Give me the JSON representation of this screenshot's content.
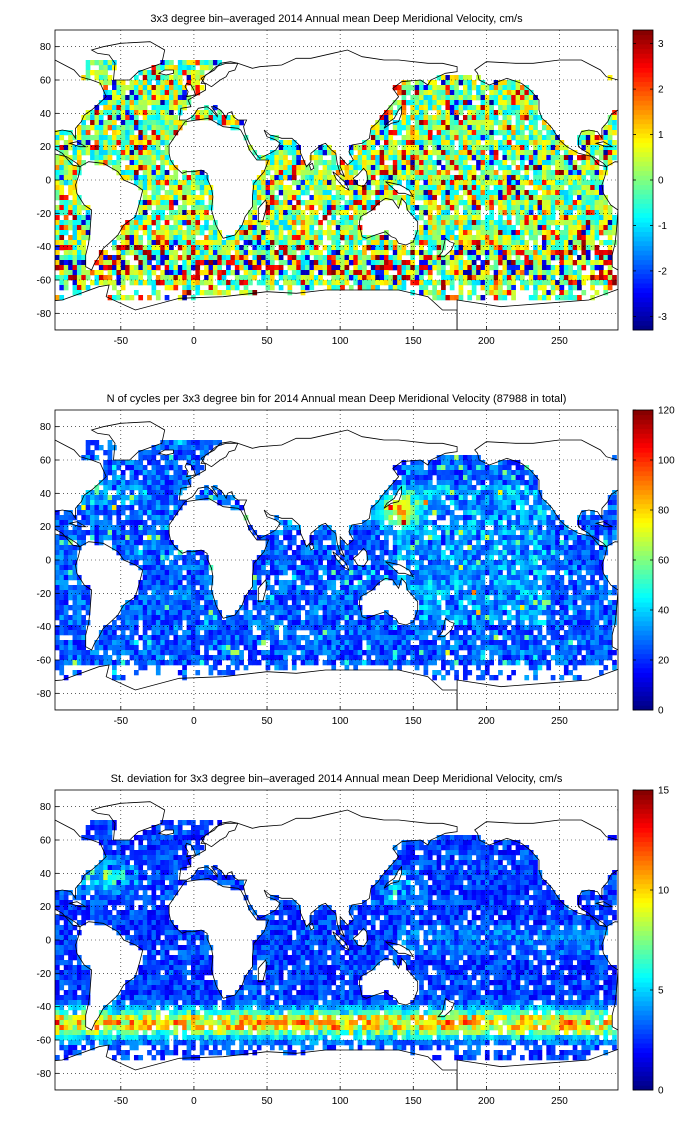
{
  "panels": [
    {
      "title": "3x3 degree bin–averaged 2014 Annual mean Deep Meridional Velocity, cm/s",
      "colorbar": {
        "min": -3.3,
        "max": 3.3,
        "ticks": [
          -3,
          -2,
          -1,
          0,
          1,
          2,
          3
        ]
      },
      "field": "velocity"
    },
    {
      "title": "N of cycles per 3x3 degree bin for 2014 Annual mean Deep Meridional Velocity (87988 in total)",
      "colorbar": {
        "min": 0,
        "max": 120,
        "ticks": [
          0,
          20,
          40,
          60,
          80,
          100,
          120
        ]
      },
      "field": "count"
    },
    {
      "title": "St. deviation for 3x3 degree bin–averaged 2014 Annual mean Deep Meridional Velocity, cm/s",
      "colorbar": {
        "min": 0,
        "max": 15,
        "ticks": [
          0,
          5,
          10,
          15
        ]
      },
      "field": "stdev"
    }
  ],
  "axes": {
    "xlim": [
      -95,
      290
    ],
    "ylim": [
      -90,
      90
    ],
    "xticks": [
      -50,
      0,
      50,
      100,
      150,
      200,
      250
    ],
    "yticks": [
      -80,
      -60,
      -40,
      -20,
      0,
      20,
      40,
      60,
      80
    ],
    "grid": "dotted"
  },
  "colormap": "jet"
}
